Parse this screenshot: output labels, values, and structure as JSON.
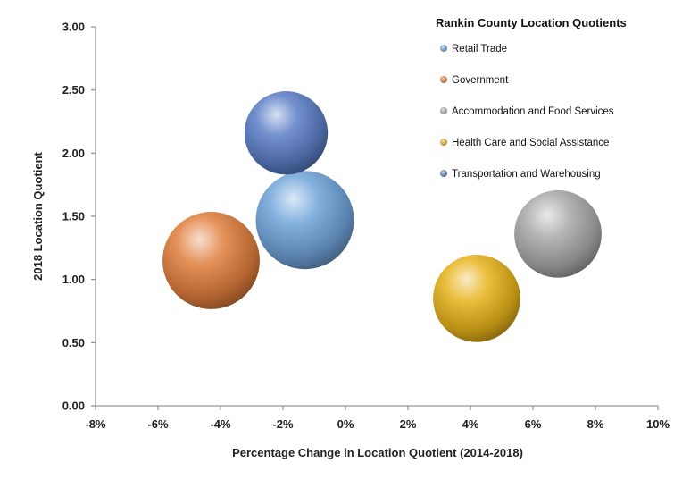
{
  "chart_data": {
    "type": "bubble",
    "title": "Rankin County Location Quotients",
    "xlabel": "Percentage Change in Location Quotient (2014-2018)",
    "ylabel": "2018 Location Quotient",
    "xlim": [
      -8,
      10
    ],
    "ylim": [
      0,
      3
    ],
    "x_ticks": [
      "-8%",
      "-6%",
      "-4%",
      "-2%",
      "0%",
      "2%",
      "4%",
      "6%",
      "8%",
      "10%"
    ],
    "y_ticks": [
      "0.00",
      "0.50",
      "1.00",
      "1.50",
      "2.00",
      "2.50",
      "3.00"
    ],
    "grid": false,
    "legend_position": "top-right",
    "series": [
      {
        "name": "Retail Trade",
        "x": -1.3,
        "y": 1.47,
        "size": 1.0,
        "color": "#6fa3d9"
      },
      {
        "name": "Government",
        "x": -4.3,
        "y": 1.15,
        "size": 0.98,
        "color": "#e07d3c"
      },
      {
        "name": "Accommodation and Food Services",
        "x": 6.8,
        "y": 1.36,
        "size": 0.79,
        "color": "#a9a9a9"
      },
      {
        "name": "Health Care and Social Assistance",
        "x": 4.2,
        "y": 0.85,
        "size": 0.79,
        "color": "#e6b219"
      },
      {
        "name": "Transportation and Warehousing",
        "x": -1.9,
        "y": 2.16,
        "size": 0.72,
        "color": "#5a7ec6"
      }
    ]
  }
}
